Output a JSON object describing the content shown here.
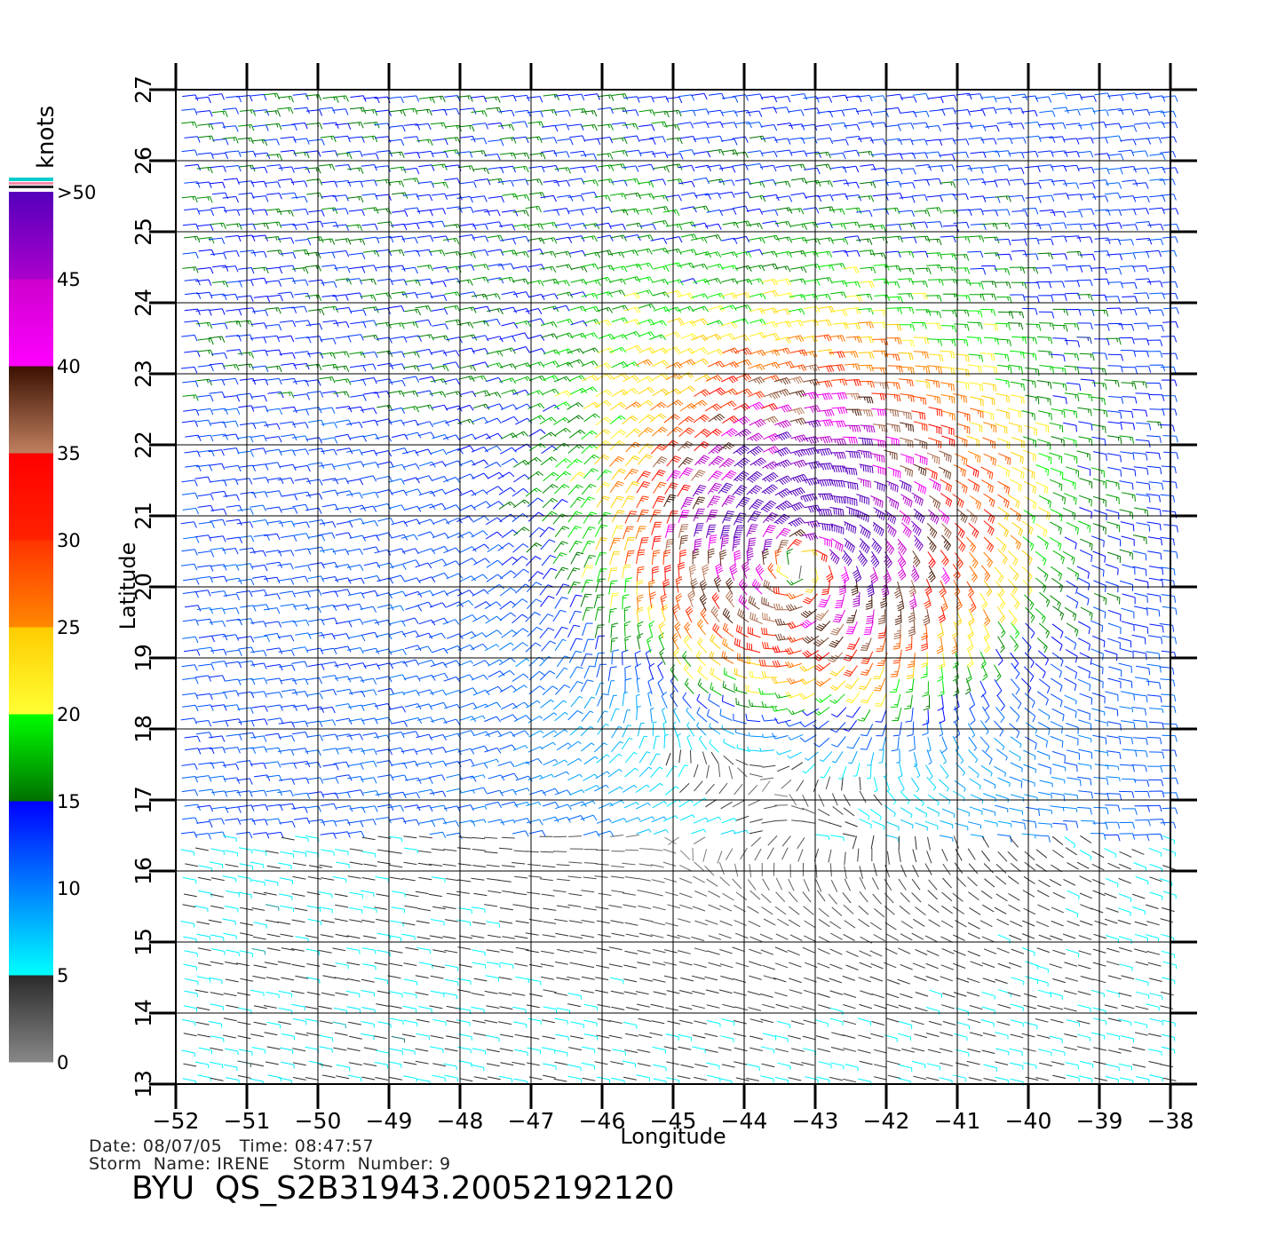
{
  "map": {
    "lon_range": [
      -52,
      -38
    ],
    "lat_range": [
      13,
      27
    ],
    "lon_ticks": [
      "−52",
      "−51",
      "−50",
      "−49",
      "−48",
      "−47",
      "−46",
      "−45",
      "−44",
      "−43",
      "−42",
      "−41",
      "−40",
      "−39",
      "−38"
    ],
    "lat_ticks": [
      "13",
      "14",
      "15",
      "16",
      "17",
      "18",
      "19",
      "20",
      "21",
      "22",
      "23",
      "24",
      "25",
      "26",
      "27"
    ],
    "xlabel": "Longitude",
    "ylabel": "Latitude",
    "grid": true,
    "storm_center": {
      "lon": -43.2,
      "lat": 20.4
    },
    "field": "QuikSCAT wind barbs (knots)"
  },
  "legend": {
    "unit": "knots",
    "tick_labels": [
      ">50",
      "45",
      "40",
      "35",
      "30",
      "25",
      "20",
      "15",
      "10",
      "5",
      "0"
    ],
    "color_stops": [
      {
        "from": 0,
        "to": 5,
        "colors": [
          "#888888",
          "#2a2a2a"
        ]
      },
      {
        "from": 5,
        "to": 15,
        "colors": [
          "#00ffff",
          "#0000ff"
        ]
      },
      {
        "from": 15,
        "to": 20,
        "colors": [
          "#007000",
          "#00ff00"
        ]
      },
      {
        "from": 20,
        "to": 25,
        "colors": [
          "#ffff33",
          "#ffcc00"
        ]
      },
      {
        "from": 25,
        "to": 30,
        "colors": [
          "#ff8800",
          "#ff3300"
        ]
      },
      {
        "from": 30,
        "to": 35,
        "colors": [
          "#ff2200",
          "#ff0000"
        ]
      },
      {
        "from": 35,
        "to": 40,
        "colors": [
          "#c08060",
          "#3a1000"
        ]
      },
      {
        "from": 40,
        "to": 45,
        "colors": [
          "#ff00ff",
          "#cc00cc"
        ]
      },
      {
        "from": 45,
        "to": 50,
        "colors": [
          "#aa00cc",
          "#5500bb"
        ]
      }
    ]
  },
  "caption": {
    "date_line": "Date: 08/07/05   Time: 08:47:57",
    "storm_line": "Storm  Name: IRENE    Storm  Number: 9",
    "file_line": "BYU  QS_S2B31943.20052192120"
  }
}
